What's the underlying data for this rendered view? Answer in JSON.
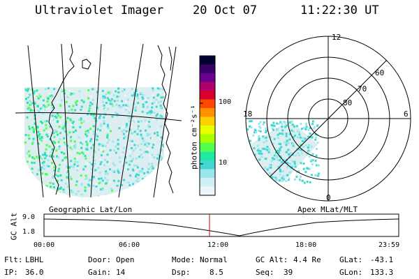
{
  "header": {
    "title": "Ultraviolet Imager",
    "date": "20 Oct 07",
    "time": "11:22:30 UT"
  },
  "colorbar": {
    "label": "photon cm⁻²s⁻¹",
    "ticks": [
      "100",
      "10"
    ],
    "colors": [
      "#000033",
      "#3b0066",
      "#6a0090",
      "#b0006a",
      "#d80030",
      "#ff4800",
      "#ff9000",
      "#ffd000",
      "#e8ff00",
      "#a8ff00",
      "#50ff50",
      "#20e8a0",
      "#40d8d0",
      "#9ae8ee",
      "#d0f0f5",
      "#eef4f8"
    ]
  },
  "map": {
    "label_left": "Geographic Lat/Lon",
    "label_right": "Apex MLat/MLT"
  },
  "polar": {
    "mlt_labels": {
      "top": "12",
      "left": "18",
      "right": "6",
      "bottom": "0"
    },
    "lat_labels": [
      "60",
      "70",
      "80"
    ]
  },
  "altitude_plot": {
    "ylabel": "GC Alt",
    "yticks": [
      "9.0",
      "1.8"
    ],
    "xticks": [
      "00:00",
      "06:00",
      "12:00",
      "18:00",
      "23:59"
    ],
    "marker_color": "#cc0000"
  },
  "footer": {
    "row1": [
      {
        "key": "Flt:",
        "value": "LBHL"
      },
      {
        "key": "Door:",
        "value": "Open"
      },
      {
        "key": "Mode:",
        "value": "Normal"
      },
      {
        "key": "GC Alt:",
        "value": "4.4 Re"
      },
      {
        "key": "GLat:",
        "value": "-43.1"
      }
    ],
    "row2": [
      {
        "key": "IP:",
        "value": "36.0"
      },
      {
        "key": "Gain:",
        "value": "14"
      },
      {
        "key": "Dsp:",
        "value": "8.5"
      },
      {
        "key": "Seq:",
        "value": "39"
      },
      {
        "key": "GLon:",
        "value": "133.3"
      }
    ]
  }
}
